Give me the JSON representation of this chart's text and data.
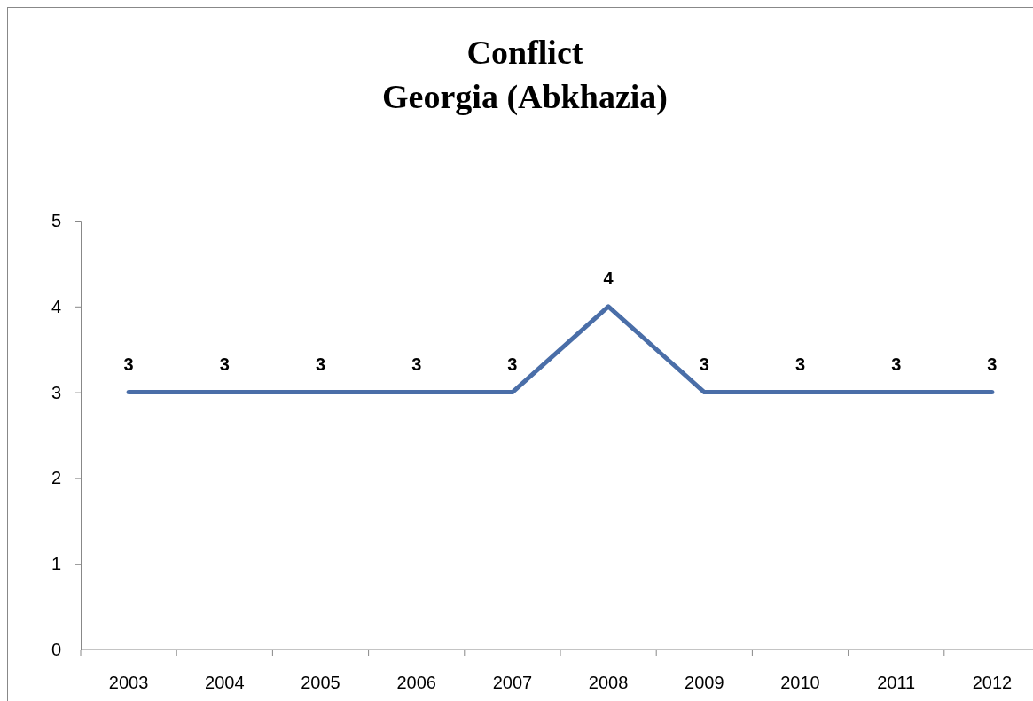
{
  "chart_data": {
    "type": "line",
    "title": "Conflict\nGeorgia (Abkhazia)",
    "categories": [
      "2003",
      "2004",
      "2005",
      "2006",
      "2007",
      "2008",
      "2009",
      "2010",
      "2011",
      "2012"
    ],
    "series": [
      {
        "color": "#4a6ea8",
        "values": [
          3,
          3,
          3,
          3,
          3,
          4,
          3,
          3,
          3,
          3
        ]
      }
    ],
    "ylim": [
      0,
      5
    ],
    "yticks": [
      0,
      1,
      2,
      3,
      4,
      5
    ],
    "grid": false,
    "marker": "none",
    "line_style": "solid",
    "data_labels": true
  }
}
